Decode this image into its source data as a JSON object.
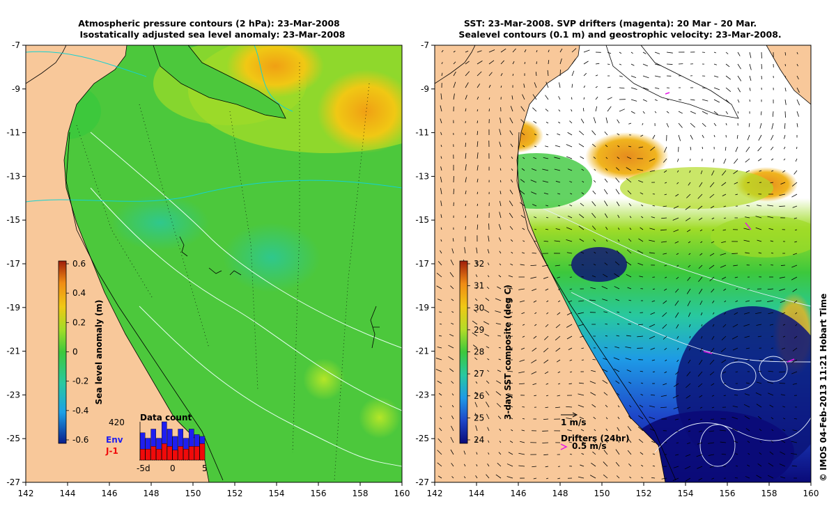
{
  "left_panel": {
    "title_line1": "Atmospheric pressure contours (2 hPa): 23-Mar-2008",
    "title_line2": "Isostatically adjusted sea level anomaly: 23-Mar-2008",
    "colorbar": {
      "label": "Sea level anomaly (m)",
      "ticks": [
        "0.6",
        "0.4",
        "0.2",
        "0",
        "-0.2",
        "-0.4",
        "-0.6"
      ]
    },
    "data_count": {
      "title": "Data count",
      "max_label": "420",
      "series1": "Env",
      "series2": "J-1",
      "x_ticks": [
        "-5d",
        "0",
        "5"
      ],
      "env_counts": [
        300,
        240,
        340,
        240,
        420,
        340,
        260,
        340,
        240,
        340,
        280,
        260
      ],
      "j1_counts": [
        120,
        120,
        150,
        120,
        180,
        150,
        110,
        150,
        120,
        150,
        150,
        180
      ]
    }
  },
  "right_panel": {
    "title_line1": "SST: 23-Mar-2008. SVP drifters (magenta): 20 Mar - 20 Mar.",
    "title_line2": "Sealevel contours (0.1 m) and geostrophic velocity: 23-Mar-2008.",
    "colorbar": {
      "label": "3-day SST composite (deg C)",
      "ticks": [
        "32",
        "31",
        "30",
        "29",
        "28",
        "27",
        "26",
        "25",
        "24"
      ]
    },
    "scale_arrow_label": "1 m/s",
    "drifters_label": "Drifters (24hr)",
    "drifter_speed_label": "0.5 m/s",
    "credit": "© IMOS 04-Feb-2013 11:21 Hobart Time"
  },
  "axes": {
    "x_ticks": [
      "142",
      "144",
      "146",
      "148",
      "150",
      "152",
      "154",
      "156",
      "158",
      "160"
    ],
    "y_ticks": [
      "-7",
      "-9",
      "-11",
      "-13",
      "-15",
      "-17",
      "-19",
      "-21",
      "-23",
      "-25",
      "-27"
    ],
    "lon_range": [
      142,
      160
    ],
    "lat_range": [
      -27,
      -7
    ]
  },
  "colors": {
    "land": "#f8c89a",
    "sla_scale": [
      "#0a1e8c",
      "#1ea0e6",
      "#28c8a0",
      "#3cc83c",
      "#a0dc28",
      "#f0c814",
      "#f08c14",
      "#a01e0a"
    ],
    "sst_scale": [
      "#0a0a78",
      "#1e46c8",
      "#1e9ae6",
      "#28c8a0",
      "#3cc83c",
      "#b4dc28",
      "#f0c814",
      "#f08c14",
      "#a01e0a"
    ],
    "env_bar": "#1e1ef0",
    "j1_bar": "#f00a0a",
    "drifter": "#e614e6"
  }
}
